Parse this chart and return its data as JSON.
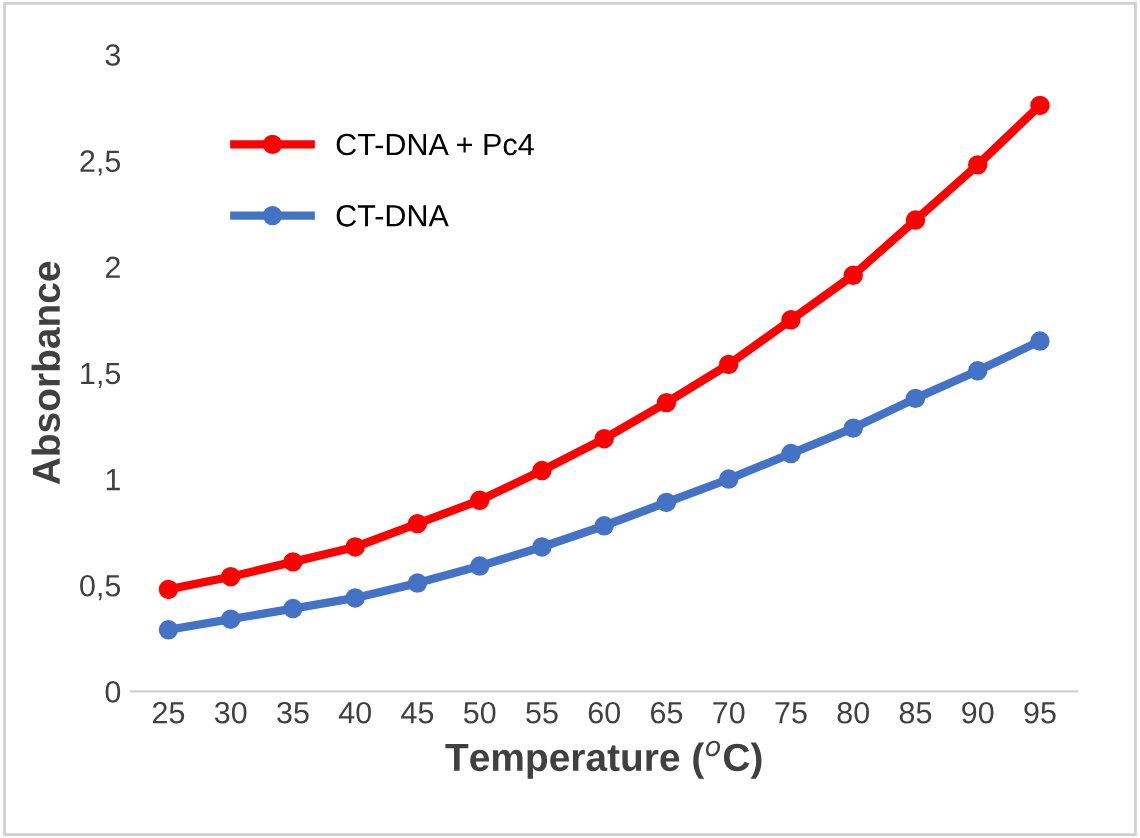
{
  "chart_data": {
    "type": "line",
    "xlabel": "Temperature ($^{o}$C)",
    "ylabel": "Absorbance",
    "categories": [
      "25",
      "30",
      "35",
      "40",
      "45",
      "50",
      "55",
      "60",
      "65",
      "70",
      "75",
      "80",
      "85",
      "90",
      "95"
    ],
    "series": [
      {
        "name": "CT-DNA + Pc4",
        "color": "#ff0000",
        "values": [
          0.48,
          0.54,
          0.61,
          0.68,
          0.79,
          0.9,
          1.04,
          1.19,
          1.36,
          1.54,
          1.75,
          1.96,
          2.22,
          2.48,
          2.76
        ]
      },
      {
        "name": "CT-DNA",
        "color": "#4472c4",
        "values": [
          0.29,
          0.34,
          0.39,
          0.44,
          0.51,
          0.59,
          0.68,
          0.78,
          0.89,
          1.0,
          1.12,
          1.24,
          1.38,
          1.51,
          1.65
        ]
      }
    ],
    "ylim": [
      0,
      3
    ],
    "yticks": [
      0,
      {
        "value": 0.5,
        "label": "0,5"
      },
      1,
      {
        "value": 1.5,
        "label": "1,5"
      },
      2,
      {
        "value": 2.5,
        "label": "2,5"
      },
      3
    ],
    "grid": false,
    "legend": "top left",
    "marker": "circle",
    "line_style": "solid"
  }
}
